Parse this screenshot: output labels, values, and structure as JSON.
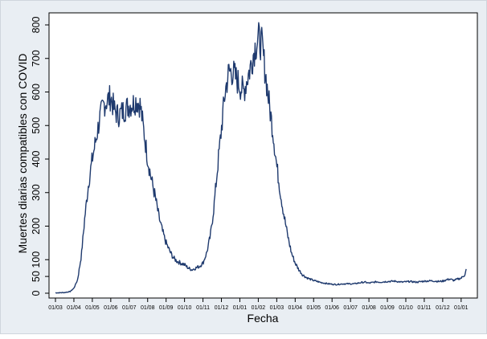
{
  "chart_data": {
    "type": "line",
    "title": "",
    "xlabel": "Fecha",
    "ylabel": "Muertes diarias compatibles con COVID",
    "ylim": [
      0,
      800
    ],
    "y_ticks": [
      0,
      50,
      100,
      200,
      300,
      400,
      500,
      600,
      700,
      800
    ],
    "y_tick_labels": [
      "0",
      "50",
      "100",
      "200",
      "300",
      "400",
      "500",
      "600",
      "700",
      "800"
    ],
    "x_ticks": [
      "01/03",
      "01/04",
      "01/05",
      "01/06",
      "01/07",
      "01/08",
      "01/09",
      "01/10",
      "01/11",
      "01/12",
      "01/01",
      "01/02",
      "01/03",
      "01/04",
      "01/05",
      "01/06",
      "01/07",
      "01/08",
      "01/09",
      "01/10",
      "01/11",
      "01/12",
      "01/01"
    ],
    "x_range_months": [
      0,
      22.4
    ],
    "grid": false,
    "legend": "none",
    "line_color": "#1f3a6e",
    "series": [
      {
        "name": "",
        "x_month_offsets": [
          0.0,
          0.5,
          0.8,
          1.0,
          1.2,
          1.4,
          1.6,
          1.8,
          2.0,
          2.2,
          2.4,
          2.6,
          2.8,
          3.0,
          3.2,
          3.4,
          3.6,
          3.8,
          4.0,
          4.2,
          4.4,
          4.6,
          4.8,
          5.0,
          5.2,
          5.4,
          5.6,
          5.8,
          6.0,
          6.2,
          6.4,
          6.6,
          6.8,
          7.0,
          7.2,
          7.4,
          7.6,
          7.8,
          8.0,
          8.2,
          8.4,
          8.6,
          8.8,
          9.0,
          9.2,
          9.4,
          9.6,
          9.8,
          10.0,
          10.2,
          10.4,
          10.6,
          10.8,
          11.0,
          11.2,
          11.4,
          11.6,
          11.8,
          12.0,
          12.2,
          12.4,
          12.6,
          12.8,
          13.0,
          13.2,
          13.4,
          13.6,
          13.8,
          14.0,
          14.2,
          14.4,
          14.6,
          14.8,
          15.0,
          15.2,
          15.4,
          15.6,
          15.8,
          16.0,
          16.2,
          16.4,
          16.6,
          16.8,
          17.0,
          17.2,
          17.4,
          17.6,
          17.8,
          18.0,
          18.4,
          18.8,
          19.2,
          19.6,
          20.0,
          20.4,
          20.8,
          21.0,
          21.2,
          21.4,
          21.6,
          21.8,
          22.0,
          22.2,
          22.3
        ],
        "values": [
          1,
          2,
          5,
          15,
          40,
          110,
          230,
          330,
          400,
          460,
          520,
          560,
          575,
          585,
          545,
          530,
          540,
          550,
          560,
          565,
          575,
          560,
          480,
          400,
          340,
          290,
          230,
          185,
          150,
          125,
          105,
          95,
          90,
          85,
          75,
          70,
          75,
          80,
          90,
          120,
          170,
          260,
          380,
          490,
          600,
          660,
          660,
          640,
          620,
          600,
          640,
          680,
          730,
          760,
          740,
          650,
          560,
          480,
          380,
          300,
          230,
          170,
          120,
          90,
          70,
          55,
          47,
          42,
          38,
          35,
          32,
          30,
          28,
          27,
          26,
          27,
          28,
          28,
          28,
          28,
          30,
          32,
          33,
          30,
          32,
          34,
          33,
          34,
          35,
          36,
          33,
          35,
          33,
          36,
          37,
          35,
          36,
          40,
          42,
          38,
          42,
          45,
          55,
          75
        ]
      }
    ]
  }
}
